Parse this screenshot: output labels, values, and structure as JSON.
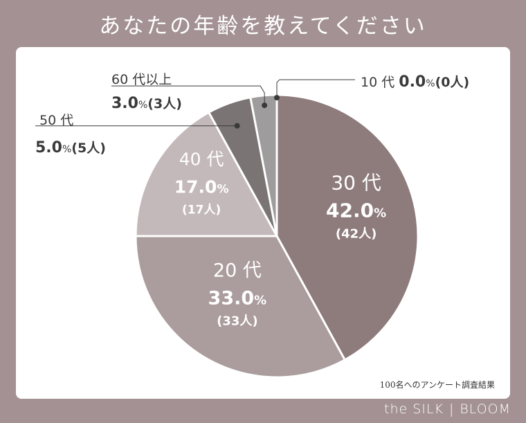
{
  "title": "あなたの年齢を教えてください",
  "footnote": "100名へのアンケート調査結果",
  "brand": {
    "left": "the SILK",
    "right": "BLOOM"
  },
  "colors": {
    "background": "#a39193",
    "s30": "#8e7b7c",
    "s20": "#ab9c9d",
    "s40": "#c4b9ba",
    "s50": "#7a7474",
    "s60": "#9e9c9c",
    "text_dark": "#3a3a3a"
  },
  "chart_data": {
    "type": "pie",
    "title": "あなたの年齢を教えてください",
    "slices": [
      {
        "label": "10 代",
        "value": 0.0,
        "pct": "0.0",
        "count": "0人"
      },
      {
        "label": "30 代",
        "value": 42.0,
        "pct": "42.0",
        "count": "42人"
      },
      {
        "label": "20 代",
        "value": 33.0,
        "pct": "33.0",
        "count": "33人"
      },
      {
        "label": "40 代",
        "value": 17.0,
        "pct": "17.0",
        "count": "17人"
      },
      {
        "label": "50 代",
        "value": 5.0,
        "pct": "5.0",
        "count": "5人"
      },
      {
        "label": "60 代以上",
        "value": 3.0,
        "pct": "3.0",
        "count": "3人"
      }
    ],
    "total": 100,
    "unit": "%"
  }
}
